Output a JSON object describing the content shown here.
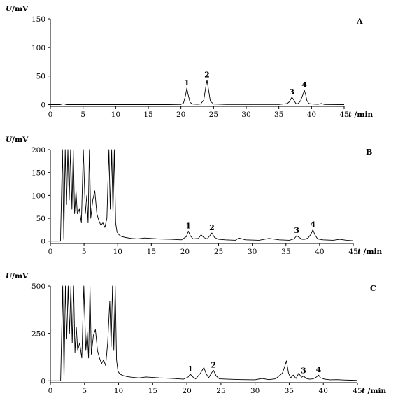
{
  "chart_data": [
    {
      "type": "line",
      "panel_label": "A",
      "ylabel": "U/mV",
      "xlabel": "t /min",
      "xlim": [
        0,
        45
      ],
      "ylim": [
        -3,
        150
      ],
      "xticks": [
        0,
        5,
        10,
        15,
        20,
        25,
        30,
        35,
        40,
        45
      ],
      "yticks": [
        0,
        50,
        100,
        150
      ],
      "grid": false,
      "series": [
        {
          "x": [
            0,
            1.5,
            2,
            2.5,
            5,
            10,
            15,
            18,
            20,
            20.4,
            20.7,
            20.9,
            21.1,
            21.4,
            21.8,
            22.5,
            23,
            23.5,
            23.8,
            24.0,
            24.2,
            24.5,
            25,
            27,
            30,
            33,
            35,
            36.3,
            36.6,
            37.0,
            37.3,
            37.6,
            37.9,
            38.3,
            38.7,
            38.9,
            39.1,
            39.3,
            39.6,
            40.2,
            41,
            41.5,
            42,
            45
          ],
          "y": [
            0,
            0,
            1.5,
            0,
            0,
            0,
            0,
            0,
            0.3,
            3,
            16,
            29,
            18,
            4,
            1,
            0.5,
            1,
            8,
            30,
            43,
            28,
            6,
            1,
            0.3,
            0.3,
            0.3,
            0.3,
            2,
            5,
            13,
            8,
            2,
            1.5,
            6,
            18,
            25,
            18,
            7,
            2,
            1,
            0.5,
            2,
            0.3,
            0
          ]
        }
      ],
      "annotations": [
        {
          "text": "1",
          "x": 20.9,
          "y": 29
        },
        {
          "text": "2",
          "x": 24.0,
          "y": 43
        },
        {
          "text": "3",
          "x": 37.0,
          "y": 13
        },
        {
          "text": "4",
          "x": 38.9,
          "y": 25
        }
      ]
    },
    {
      "type": "line",
      "panel_label": "B",
      "ylabel": "U/mV",
      "xlabel": "t /min",
      "xlim": [
        0,
        45
      ],
      "ylim": [
        -5,
        200
      ],
      "xticks": [
        0,
        5,
        10,
        15,
        20,
        25,
        30,
        35,
        40,
        45
      ],
      "yticks": [
        0,
        50,
        100,
        150,
        200
      ],
      "grid": false,
      "series": [
        {
          "x": [
            0,
            1.5,
            1.8,
            2.0,
            2.2,
            2.4,
            2.6,
            2.8,
            3.0,
            3.2,
            3.4,
            3.6,
            3.8,
            4.0,
            4.3,
            4.6,
            4.9,
            5.2,
            5.4,
            5.6,
            5.8,
            6.0,
            6.3,
            6.6,
            6.9,
            7.2,
            7.5,
            7.8,
            8.1,
            8.4,
            8.7,
            8.9,
            9.1,
            9.3,
            9.5,
            9.7,
            9.9,
            10.2,
            10.6,
            11.2,
            12,
            13,
            14,
            16,
            18,
            19.5,
            20.2,
            20.5,
            20.8,
            21.2,
            22,
            22.4,
            22.8,
            23.3,
            23.7,
            24.0,
            24.4,
            25,
            26,
            27.5,
            28,
            29,
            31,
            32.5,
            34,
            35.5,
            36.2,
            36.6,
            37.0,
            37.4,
            37.8,
            38.3,
            38.7,
            39.0,
            39.3,
            39.7,
            40.5,
            42,
            43,
            44,
            45
          ],
          "y": [
            0,
            0,
            200,
            4,
            200,
            80,
            200,
            90,
            200,
            70,
            200,
            60,
            110,
            60,
            70,
            40,
            200,
            60,
            100,
            40,
            200,
            50,
            90,
            110,
            60,
            45,
            35,
            40,
            30,
            50,
            200,
            70,
            200,
            60,
            200,
            40,
            20,
            14,
            10,
            8,
            6,
            5,
            7,
            5,
            4,
            3,
            10,
            22,
            12,
            5,
            6,
            14,
            8,
            5,
            12,
            18,
            8,
            4,
            3,
            2,
            7,
            3,
            2,
            6,
            3,
            2,
            5,
            12,
            8,
            4,
            4,
            7,
            15,
            25,
            14,
            5,
            3,
            2,
            4,
            2,
            1
          ]
        }
      ],
      "annotations": [
        {
          "text": "1",
          "x": 20.5,
          "y": 22
        },
        {
          "text": "2",
          "x": 24.0,
          "y": 18
        },
        {
          "text": "3",
          "x": 36.6,
          "y": 12
        },
        {
          "text": "4",
          "x": 39.0,
          "y": 25
        }
      ]
    },
    {
      "type": "line",
      "panel_label": "C",
      "ylabel": "U/mV",
      "xlabel": "t /min",
      "xlim": [
        0,
        45
      ],
      "ylim": [
        -10,
        500
      ],
      "xticks": [
        0,
        5,
        10,
        15,
        20,
        25,
        30,
        35,
        40,
        45
      ],
      "yticks": [
        0,
        250,
        500
      ],
      "grid": false,
      "series": [
        {
          "x": [
            0,
            1.5,
            1.8,
            2.0,
            2.2,
            2.4,
            2.6,
            2.8,
            3.0,
            3.2,
            3.4,
            3.6,
            3.8,
            4.0,
            4.3,
            4.6,
            4.9,
            5.2,
            5.4,
            5.6,
            5.8,
            6.0,
            6.3,
            6.6,
            6.9,
            7.2,
            7.5,
            7.8,
            8.1,
            8.4,
            8.7,
            8.9,
            9.1,
            9.3,
            9.5,
            9.7,
            9.9,
            10.2,
            10.6,
            11.2,
            12,
            13,
            14,
            16,
            18,
            19.5,
            20.2,
            20.5,
            20.8,
            21.3,
            22.0,
            22.5,
            22.8,
            23.2,
            23.6,
            23.9,
            24.3,
            24.8,
            26,
            28,
            30,
            31,
            32,
            33,
            34,
            34.3,
            34.6,
            34.9,
            35.2,
            35.6,
            36.0,
            36.4,
            36.8,
            37.1,
            37.5,
            38,
            38.5,
            39.0,
            39.3,
            39.6,
            40.2,
            41,
            42,
            43,
            44,
            45
          ],
          "y": [
            0,
            0,
            500,
            10,
            500,
            220,
            500,
            250,
            500,
            200,
            500,
            150,
            280,
            160,
            200,
            120,
            500,
            160,
            260,
            120,
            500,
            140,
            240,
            270,
            160,
            120,
            90,
            110,
            80,
            200,
            420,
            180,
            500,
            160,
            500,
            110,
            50,
            35,
            28,
            22,
            18,
            15,
            20,
            15,
            12,
            8,
            20,
            35,
            22,
            10,
            40,
            70,
            40,
            15,
            40,
            55,
            25,
            10,
            8,
            6,
            5,
            12,
            6,
            10,
            40,
            70,
            105,
            40,
            15,
            30,
            12,
            40,
            18,
            25,
            12,
            8,
            10,
            20,
            30,
            15,
            8,
            5,
            6,
            4,
            3,
            2
          ]
        }
      ],
      "annotations": [
        {
          "text": "1",
          "x": 20.5,
          "y": 35
        },
        {
          "text": "2",
          "x": 23.9,
          "y": 55
        },
        {
          "text": "3",
          "x": 37.1,
          "y": 25
        },
        {
          "text": "4",
          "x": 39.3,
          "y": 30
        }
      ]
    }
  ]
}
